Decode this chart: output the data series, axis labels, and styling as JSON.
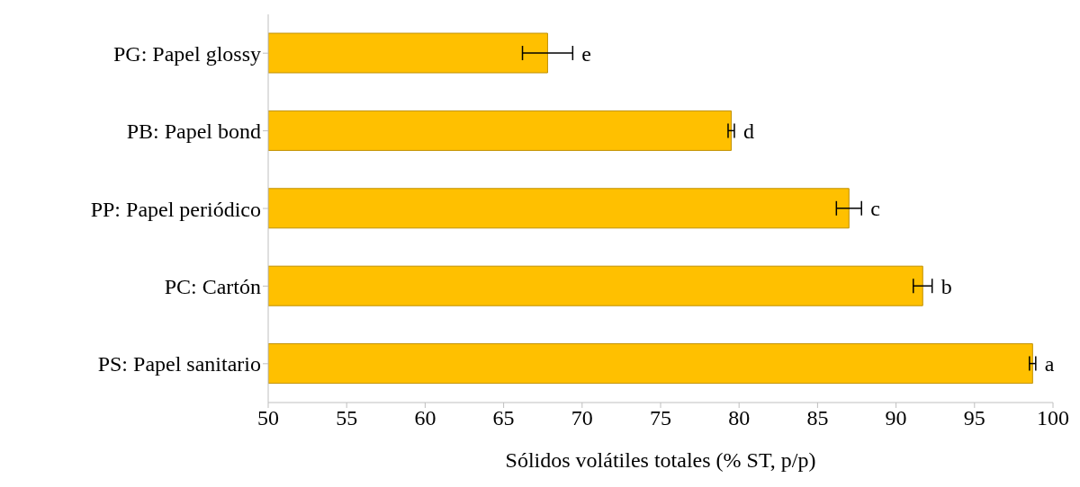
{
  "chart_data": {
    "type": "bar",
    "orientation": "horizontal",
    "xlabel": "Sólidos volátiles totales (% ST, p/p)",
    "categories": [
      "PG: Papel glossy",
      "PB: Papel bond",
      "PP: Papel periódico",
      "PC: Cartón",
      "PS: Papel sanitario"
    ],
    "values": [
      67.8,
      79.5,
      87.0,
      91.7,
      98.7
    ],
    "errors": [
      1.6,
      0.2,
      0.8,
      0.6,
      0.2
    ],
    "color": "#ffc000",
    "xlim": [
      50,
      100
    ],
    "xticks": [
      50,
      55,
      60,
      65,
      70,
      75,
      80,
      85,
      90,
      95,
      100
    ],
    "grid": false,
    "legend": false,
    "annotations": [
      {
        "text": "e",
        "x": 69.4,
        "y": "PG: Papel glossy"
      },
      {
        "text": "d",
        "x": 79.7,
        "y": "PB: Papel bond"
      },
      {
        "text": "c",
        "x": 87.8,
        "y": "PP: Papel periódico"
      },
      {
        "text": "b",
        "x": 92.3,
        "y": "PC: Cartón"
      },
      {
        "text": "a",
        "x": 98.9,
        "y": "PS: Papel sanitario"
      }
    ]
  }
}
